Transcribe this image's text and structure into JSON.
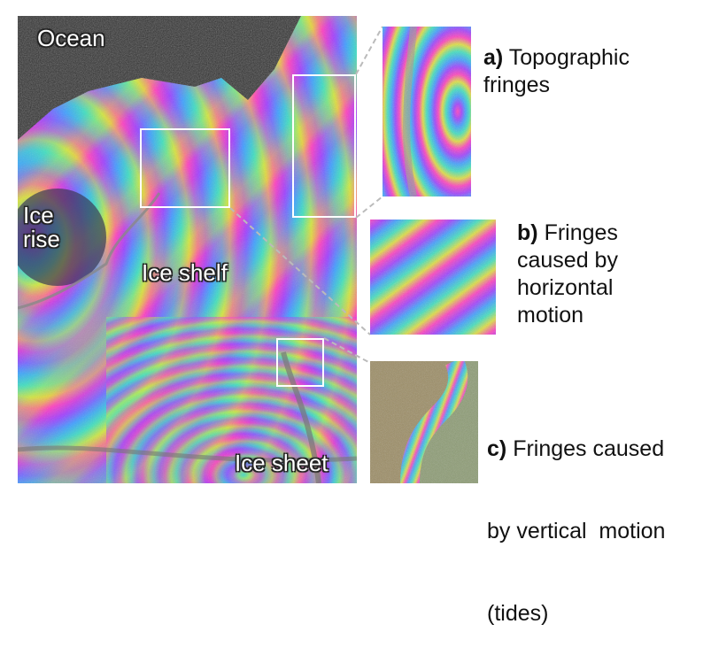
{
  "map_labels": {
    "ocean": "Ocean",
    "ice_rise_line1": "Ice",
    "ice_rise_line2": "rise",
    "ice_shelf": "Ice shelf",
    "ice_sheet": "Ice sheet"
  },
  "insets": [
    {
      "letter": "a)",
      "text_line1": "Topographic",
      "text_line2": "fringes"
    },
    {
      "letter": "b)",
      "text_line1": "Fringes",
      "text_line2": "caused by",
      "text_line3": "horizontal",
      "text_line4": "motion"
    },
    {
      "letter": "c)",
      "text_line1": "Fringes caused",
      "text_line2": "by vertical  motion",
      "text_line3": "(tides)"
    }
  ],
  "colors": {
    "fringe_cycle": [
      "#ff40c0",
      "#a040ff",
      "#40a0ff",
      "#40e0c0",
      "#c0f040",
      "#f0c040"
    ],
    "ocean": "#2b2b2b",
    "box_outline": "#ffffff",
    "connector": "#bbbbbb"
  }
}
